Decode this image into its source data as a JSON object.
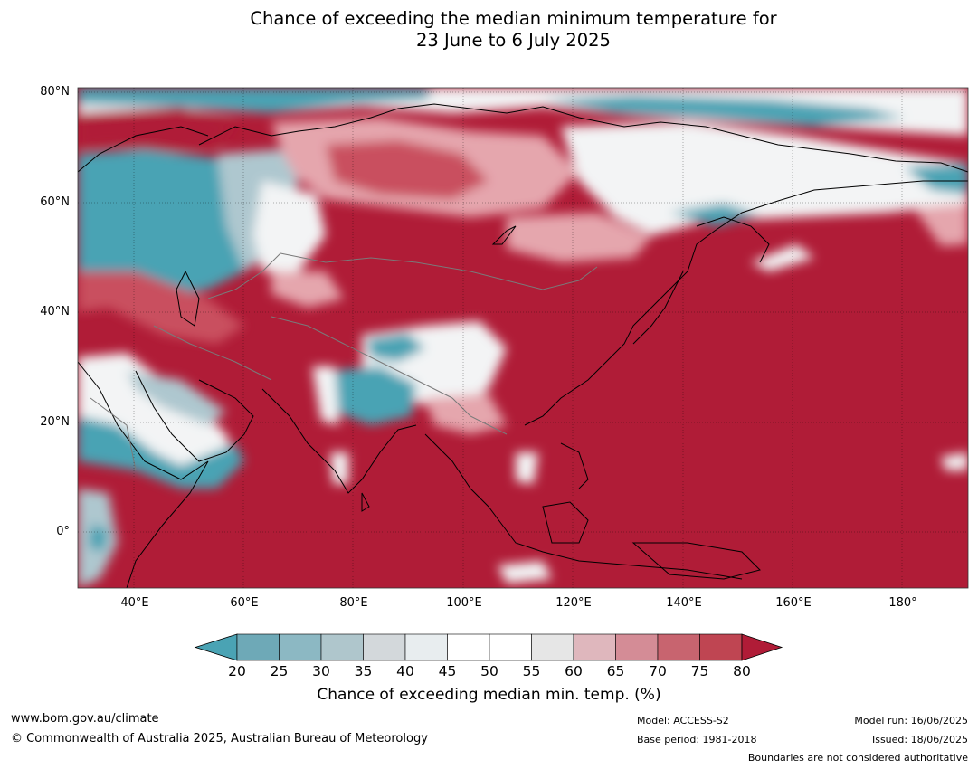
{
  "title": {
    "line1": "Chance of exceeding the median minimum temperature for",
    "line2": "23 June to 6 July 2025"
  },
  "map": {
    "lat_labels": [
      "80°N",
      "60°N",
      "40°N",
      "20°N",
      "0°"
    ],
    "lon_labels": [
      "40°E",
      "60°E",
      "80°E",
      "100°E",
      "120°E",
      "140°E",
      "160°E",
      "180°"
    ],
    "colors": {
      "very_high": "#b01c37",
      "high": "#c9505e",
      "mid_high": "#e5a6ad",
      "neutral": "#f3f4f5",
      "low": "#aec7cf",
      "very_low": "#4aa3b4"
    }
  },
  "legend": {
    "ticks": [
      "20",
      "25",
      "30",
      "35",
      "40",
      "45",
      "50",
      "55",
      "60",
      "65",
      "70",
      "75",
      "80"
    ],
    "colors": [
      "#4aa3b4",
      "#6ea9b7",
      "#8cb8c3",
      "#afc6cc",
      "#d3d8db",
      "#e8edef",
      "#ffffff",
      "#ffffff",
      "#e6e6e6",
      "#dfb7bd",
      "#d48c96",
      "#c8646f",
      "#bf4552",
      "#b01c37"
    ],
    "label": "Chance of exceeding median min. temp. (%)"
  },
  "footer": {
    "website": "www.bom.gov.au/climate",
    "copyright": "© Commonwealth of Australia 2025, Australian Bureau of Meteorology",
    "model": "Model: ACCESS-S2",
    "base_period": "Base period: 1981-2018",
    "model_run": "Model run: 16/06/2025",
    "issued": "Issued: 18/06/2025",
    "disclaimer": "Boundaries are not considered authoritative"
  }
}
